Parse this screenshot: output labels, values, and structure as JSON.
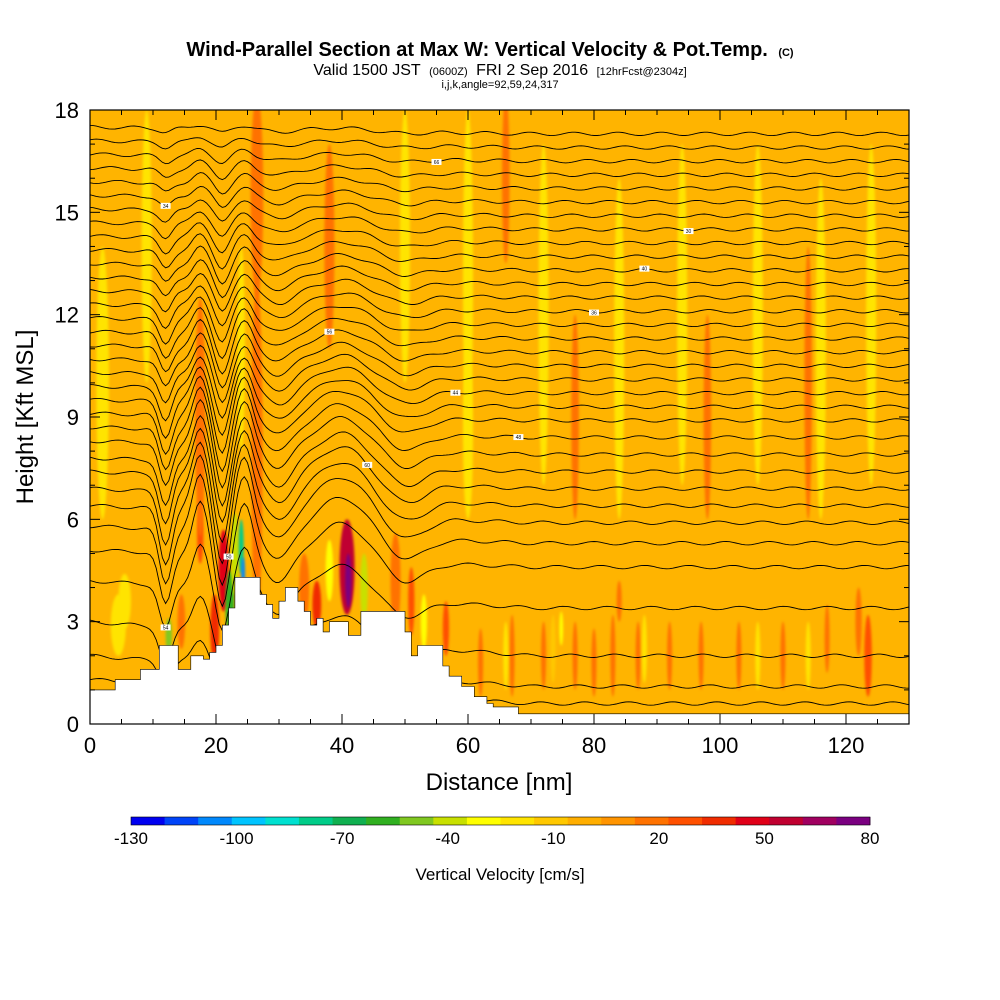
{
  "chart_data": {
    "type": "heatmap",
    "title": "Wind-Parallel Section at Max W: Vertical Velocity & Pot.Temp.",
    "title_mark": "(C)",
    "subtitle_main": "Valid 1500 JST",
    "subtitle_z": "(0600Z)",
    "subtitle_date": "FRI 2 Sep 2016",
    "subtitle_fcst": "[12hrFcst@2304z]",
    "subtitle2": "i,j,k,angle=92,59,24,317",
    "xlabel": "Distance [nm]",
    "ylabel": "Height [Kft MSL]",
    "xlim": [
      0,
      130
    ],
    "ylim": [
      0,
      18
    ],
    "x_ticks": [
      "0",
      "20",
      "40",
      "60",
      "80",
      "100",
      "120"
    ],
    "y_ticks": [
      "0",
      "3",
      "6",
      "9",
      "12",
      "15",
      "18"
    ],
    "x_tick_values": [
      0,
      20,
      40,
      60,
      80,
      100,
      120
    ],
    "y_tick_values": [
      0,
      3,
      6,
      9,
      12,
      15,
      18
    ],
    "colorbar": {
      "label": "Vertical Velocity [cm/s]",
      "tick_labels": [
        "-130",
        "-100",
        "-70",
        "-40",
        "-10",
        "20",
        "50",
        "80"
      ],
      "tick_values": [
        -130,
        -100,
        -70,
        -40,
        -10,
        20,
        50,
        80
      ],
      "step": 10,
      "colors": [
        "#0000f0",
        "#0044f8",
        "#0088fc",
        "#00c4ff",
        "#00e0d0",
        "#00cc88",
        "#10b050",
        "#30b020",
        "#80c820",
        "#c8e000",
        "#ffff00",
        "#ffe400",
        "#ffc800",
        "#ffae00",
        "#ff9400",
        "#ff7200",
        "#ff5000",
        "#f02c00",
        "#e00018",
        "#c00030",
        "#a00060",
        "#7a0080"
      ]
    },
    "background_color": "#ffb400",
    "terrain_color": "#ffffff",
    "contour_color": "#000000",
    "contour_labels": [
      "54",
      "60",
      "44",
      "36",
      "30",
      "66",
      "50",
      "48",
      "56",
      "40",
      "34"
    ],
    "velocity_features": [
      {
        "x": 4.5,
        "z": 2.9,
        "w": -12,
        "dx": 1.2,
        "dz": 0.9
      },
      {
        "x": 5.5,
        "z": 3.6,
        "w": -12,
        "dx": 1.0,
        "dz": 0.8
      },
      {
        "x": 12.5,
        "z": 2.6,
        "w": -45,
        "dx": 0.5,
        "dz": 0.5
      },
      {
        "x": 14.5,
        "z": 3.0,
        "w": 25,
        "dx": 0.6,
        "dz": 0.8
      },
      {
        "x": 17.5,
        "z": 5.5,
        "w": 35,
        "dx": 0.5,
        "dz": 0.8
      },
      {
        "x": 17.5,
        "z": 9.0,
        "w": 22,
        "dx": 0.8,
        "dz": 3.5
      },
      {
        "x": 19.8,
        "z": 2.8,
        "w": 40,
        "dx": 0.7,
        "dz": 1.0
      },
      {
        "x": 21.2,
        "z": 4.5,
        "w": 50,
        "dx": 0.8,
        "dz": 1.2
      },
      {
        "x": 22.2,
        "z": 3.5,
        "w": -55,
        "dx": 0.7,
        "dz": 1.0
      },
      {
        "x": 23.0,
        "z": 5.0,
        "w": -40,
        "dx": 0.6,
        "dz": 1.2
      },
      {
        "x": 24.0,
        "z": 5.2,
        "w": -80,
        "dx": 0.4,
        "dz": 0.8
      },
      {
        "x": 24.3,
        "z": 4.4,
        "w": -110,
        "dx": 0.3,
        "dz": 0.5
      },
      {
        "x": 26.5,
        "z": 8.0,
        "w": 22,
        "dx": 0.9,
        "dz": 5.0
      },
      {
        "x": 26.5,
        "z": 15.5,
        "w": 25,
        "dx": 1.0,
        "dz": 3.0
      },
      {
        "x": 24.0,
        "z": 11.0,
        "w": -15,
        "dx": 0.6,
        "dz": 3.0
      },
      {
        "x": 34.0,
        "z": 4.0,
        "w": 20,
        "dx": 0.8,
        "dz": 1.0
      },
      {
        "x": 36.0,
        "z": 3.5,
        "w": 40,
        "dx": 0.7,
        "dz": 0.7
      },
      {
        "x": 38.0,
        "z": 4.5,
        "w": -30,
        "dx": 0.6,
        "dz": 0.9
      },
      {
        "x": 40.8,
        "z": 4.6,
        "w": 65,
        "dx": 1.2,
        "dz": 1.4
      },
      {
        "x": 41.0,
        "z": 4.2,
        "w": 80,
        "dx": 0.5,
        "dz": 0.8
      },
      {
        "x": 43.5,
        "z": 4.0,
        "w": -40,
        "dx": 0.6,
        "dz": 1.0
      },
      {
        "x": 48.5,
        "z": 4.2,
        "w": 22,
        "dx": 0.8,
        "dz": 1.4
      },
      {
        "x": 51.0,
        "z": 3.6,
        "w": 35,
        "dx": 0.5,
        "dz": 1.0
      },
      {
        "x": 53.0,
        "z": 3.0,
        "w": -25,
        "dx": 0.5,
        "dz": 0.8
      },
      {
        "x": 56.5,
        "z": 2.8,
        "w": 30,
        "dx": 0.5,
        "dz": 0.8
      },
      {
        "x": 62.0,
        "z": 1.8,
        "w": 25,
        "dx": 0.4,
        "dz": 1.0
      },
      {
        "x": 67.0,
        "z": 2.0,
        "w": 22,
        "dx": 0.4,
        "dz": 1.2
      },
      {
        "x": 72.0,
        "z": 2.0,
        "w": 20,
        "dx": 0.4,
        "dz": 1.0
      },
      {
        "x": 77.0,
        "z": 2.0,
        "w": 25,
        "dx": 0.4,
        "dz": 1.0
      },
      {
        "x": 80.0,
        "z": 1.8,
        "w": 22,
        "dx": 0.4,
        "dz": 1.0
      },
      {
        "x": 83.0,
        "z": 2.0,
        "w": 28,
        "dx": 0.4,
        "dz": 1.2
      },
      {
        "x": 84.0,
        "z": 3.6,
        "w": 22,
        "dx": 0.4,
        "dz": 0.6
      },
      {
        "x": 87.0,
        "z": 2.0,
        "w": 20,
        "dx": 0.4,
        "dz": 1.0
      },
      {
        "x": 73.5,
        "z": 2.2,
        "w": -10,
        "dx": 0.4,
        "dz": 1.0
      },
      {
        "x": 74.8,
        "z": 2.8,
        "w": -30,
        "dx": 0.3,
        "dz": 0.5
      },
      {
        "x": 92.0,
        "z": 2.0,
        "w": 25,
        "dx": 0.4,
        "dz": 1.0
      },
      {
        "x": 97.0,
        "z": 2.0,
        "w": 20,
        "dx": 0.4,
        "dz": 1.0
      },
      {
        "x": 103.0,
        "z": 2.0,
        "w": 22,
        "dx": 0.4,
        "dz": 1.0
      },
      {
        "x": 110.0,
        "z": 2.0,
        "w": 20,
        "dx": 0.4,
        "dz": 1.0
      },
      {
        "x": 117.0,
        "z": 2.5,
        "w": 22,
        "dx": 0.4,
        "dz": 1.0
      },
      {
        "x": 122.0,
        "z": 3.0,
        "w": 25,
        "dx": 0.5,
        "dz": 1.0
      },
      {
        "x": 123.5,
        "z": 2.0,
        "w": 32,
        "dx": 0.6,
        "dz": 1.2
      },
      {
        "x": 66.0,
        "z": 2.0,
        "w": -12,
        "dx": 0.4,
        "dz": 1.0
      },
      {
        "x": 88.0,
        "z": 2.2,
        "w": -12,
        "dx": 0.4,
        "dz": 1.0
      },
      {
        "x": 106.0,
        "z": 2.0,
        "w": -12,
        "dx": 0.4,
        "dz": 1.0
      },
      {
        "x": 114.0,
        "z": 2.0,
        "w": -12,
        "dx": 0.4,
        "dz": 1.0
      },
      {
        "x": 94.0,
        "z": 12.0,
        "w": -12,
        "dx": 0.8,
        "dz": 5.0
      },
      {
        "x": 84.0,
        "z": 11.0,
        "w": -12,
        "dx": 0.8,
        "dz": 5.0
      },
      {
        "x": 72.0,
        "z": 12.0,
        "w": -12,
        "dx": 0.8,
        "dz": 5.0
      },
      {
        "x": 106.0,
        "z": 12.0,
        "w": -12,
        "dx": 0.8,
        "dz": 5.0
      },
      {
        "x": 116.0,
        "z": 11.0,
        "w": -12,
        "dx": 0.8,
        "dz": 5.0
      },
      {
        "x": 124.0,
        "z": 12.0,
        "w": -12,
        "dx": 0.8,
        "dz": 5.0
      },
      {
        "x": 60.0,
        "z": 13.0,
        "w": -12,
        "dx": 0.8,
        "dz": 5.0
      },
      {
        "x": 50.0,
        "z": 14.0,
        "w": -12,
        "dx": 0.8,
        "dz": 4.0
      },
      {
        "x": 9.0,
        "z": 14.0,
        "w": -12,
        "dx": 0.8,
        "dz": 4.0
      },
      {
        "x": 2.0,
        "z": 10.0,
        "w": -12,
        "dx": 1.0,
        "dz": 4.0
      },
      {
        "x": 114.0,
        "z": 10.0,
        "w": 20,
        "dx": 0.6,
        "dz": 4.0
      },
      {
        "x": 77.0,
        "z": 9.0,
        "w": 20,
        "dx": 0.6,
        "dz": 3.0
      },
      {
        "x": 98.0,
        "z": 9.0,
        "w": 20,
        "dx": 0.6,
        "dz": 3.0
      },
      {
        "x": 60.0,
        "z": 8.5,
        "w": -12,
        "dx": 0.8,
        "dz": 2.5
      },
      {
        "x": 66.0,
        "z": 16.0,
        "w": 20,
        "dx": 0.6,
        "dz": 2.5
      },
      {
        "x": 38.0,
        "z": 14.0,
        "w": 20,
        "dx": 0.8,
        "dz": 3.0
      }
    ],
    "terrain_profile": [
      [
        0,
        1.0
      ],
      [
        4,
        1.0
      ],
      [
        4,
        1.3
      ],
      [
        8,
        1.3
      ],
      [
        8,
        1.6
      ],
      [
        11,
        1.6
      ],
      [
        11,
        2.3
      ],
      [
        14,
        2.3
      ],
      [
        14,
        1.6
      ],
      [
        16,
        1.6
      ],
      [
        16,
        2.0
      ],
      [
        18,
        2.0
      ],
      [
        18,
        1.9
      ],
      [
        19,
        1.9
      ],
      [
        19,
        2.1
      ],
      [
        20,
        2.1
      ],
      [
        20,
        2.3
      ],
      [
        21,
        2.3
      ],
      [
        21,
        2.9
      ],
      [
        22,
        2.9
      ],
      [
        22,
        3.4
      ],
      [
        23,
        3.4
      ],
      [
        23,
        4.3
      ],
      [
        27,
        4.3
      ],
      [
        27,
        3.8
      ],
      [
        28,
        3.8
      ],
      [
        28,
        3.5
      ],
      [
        29,
        3.5
      ],
      [
        29,
        3.1
      ],
      [
        30,
        3.1
      ],
      [
        30,
        3.6
      ],
      [
        31,
        3.6
      ],
      [
        31,
        4.0
      ],
      [
        33,
        4.0
      ],
      [
        33,
        3.6
      ],
      [
        34,
        3.6
      ],
      [
        34,
        3.3
      ],
      [
        35,
        3.3
      ],
      [
        35,
        2.9
      ],
      [
        36,
        2.9
      ],
      [
        36,
        3.1
      ],
      [
        37,
        3.1
      ],
      [
        37,
        2.7
      ],
      [
        38,
        2.7
      ],
      [
        38,
        3.0
      ],
      [
        41,
        3.0
      ],
      [
        41,
        2.6
      ],
      [
        43,
        2.6
      ],
      [
        43,
        3.3
      ],
      [
        50,
        3.3
      ],
      [
        50,
        2.7
      ],
      [
        51,
        2.7
      ],
      [
        51,
        2.0
      ],
      [
        52,
        2.0
      ],
      [
        52,
        2.3
      ],
      [
        56,
        2.3
      ],
      [
        56,
        1.7
      ],
      [
        57,
        1.7
      ],
      [
        57,
        1.4
      ],
      [
        59,
        1.4
      ],
      [
        59,
        1.1
      ],
      [
        61,
        1.1
      ],
      [
        61,
        0.8
      ],
      [
        63,
        0.8
      ],
      [
        63,
        0.6
      ],
      [
        64,
        0.6
      ],
      [
        64,
        0.5
      ],
      [
        68,
        0.5
      ],
      [
        68,
        0.3
      ],
      [
        130,
        0.3
      ],
      [
        130,
        0
      ]
    ],
    "theta_lines": [
      {
        "z0": 1.3,
        "z1": 0.6,
        "amp": 0.6
      },
      {
        "z0": 2.0,
        "z1": 1.1,
        "amp": 0.9
      },
      {
        "z0": 3.0,
        "z1": 2.0,
        "amp": 1.3
      },
      {
        "z0": 4.2,
        "z1": 3.4,
        "amp": 1.6
      },
      {
        "z0": 5.1,
        "z1": 4.6,
        "amp": 1.9
      },
      {
        "z0": 5.8,
        "z1": 5.3,
        "amp": 2.0
      },
      {
        "z0": 6.4,
        "z1": 5.9,
        "amp": 2.0
      },
      {
        "z0": 6.9,
        "z1": 6.4,
        "amp": 1.9
      },
      {
        "z0": 7.4,
        "z1": 6.9,
        "amp": 1.8
      },
      {
        "z0": 7.8,
        "z1": 7.4,
        "amp": 1.7
      },
      {
        "z0": 8.3,
        "z1": 7.9,
        "amp": 1.6
      },
      {
        "z0": 8.7,
        "z1": 8.4,
        "amp": 1.5
      },
      {
        "z0": 9.1,
        "z1": 8.9,
        "amp": 1.4
      },
      {
        "z0": 9.5,
        "z1": 9.3,
        "amp": 1.3
      },
      {
        "z0": 9.9,
        "z1": 9.7,
        "amp": 1.2
      },
      {
        "z0": 10.3,
        "z1": 10.1,
        "amp": 1.1
      },
      {
        "z0": 10.7,
        "z1": 10.5,
        "amp": 1.0
      },
      {
        "z0": 11.1,
        "z1": 10.9,
        "amp": 0.95
      },
      {
        "z0": 11.5,
        "z1": 11.3,
        "amp": 0.9
      },
      {
        "z0": 11.9,
        "z1": 11.7,
        "amp": 0.85
      },
      {
        "z0": 12.3,
        "z1": 12.1,
        "amp": 0.8
      },
      {
        "z0": 12.7,
        "z1": 12.5,
        "amp": 0.75
      },
      {
        "z0": 13.1,
        "z1": 12.9,
        "amp": 0.7
      },
      {
        "z0": 13.5,
        "z1": 13.3,
        "amp": 0.65
      },
      {
        "z0": 13.9,
        "z1": 13.7,
        "amp": 0.6
      },
      {
        "z0": 14.3,
        "z1": 14.1,
        "amp": 0.55
      },
      {
        "z0": 14.7,
        "z1": 14.5,
        "amp": 0.5
      },
      {
        "z0": 15.1,
        "z1": 14.9,
        "amp": 0.45
      },
      {
        "z0": 15.5,
        "z1": 15.3,
        "amp": 0.4
      },
      {
        "z0": 15.9,
        "z1": 15.7,
        "amp": 0.35
      },
      {
        "z0": 16.3,
        "z1": 16.1,
        "amp": 0.3
      },
      {
        "z0": 16.7,
        "z1": 16.5,
        "amp": 0.25
      },
      {
        "z0": 17.1,
        "z1": 16.9,
        "amp": 0.2
      },
      {
        "z0": 17.5,
        "z1": 17.3,
        "amp": 0.15
      }
    ]
  }
}
